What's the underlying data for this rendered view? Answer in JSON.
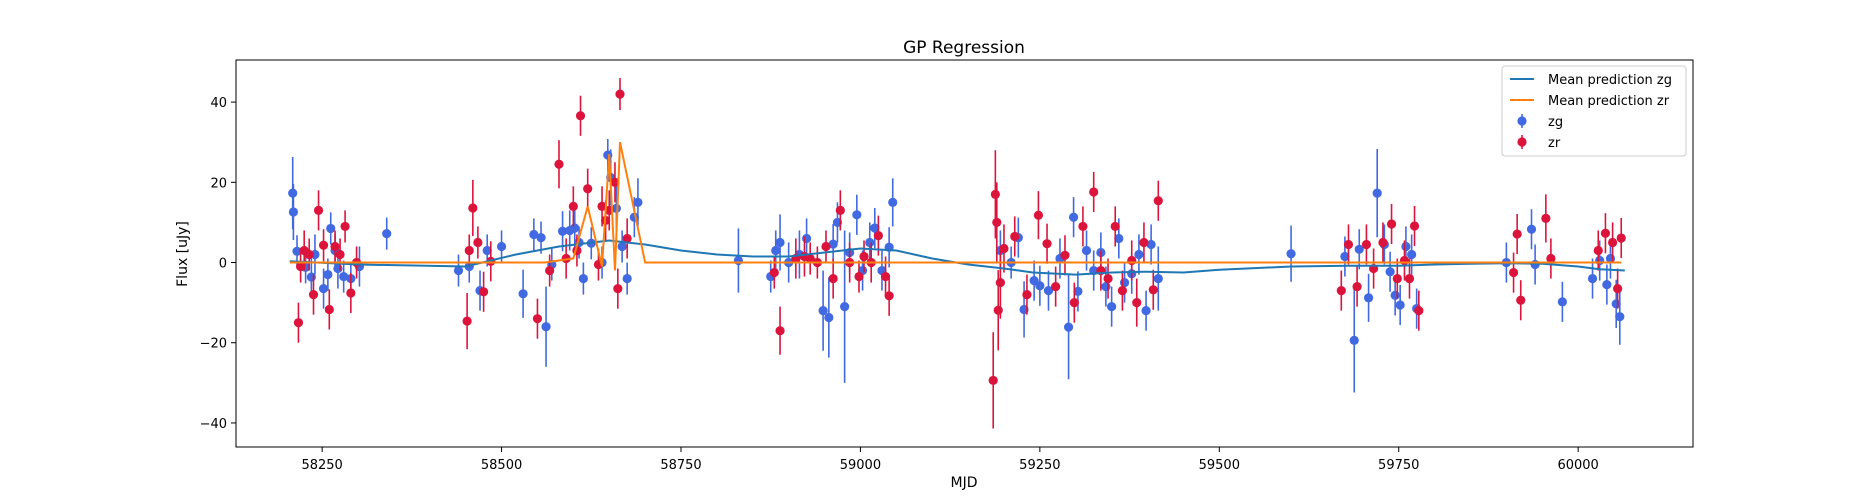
{
  "chart_data": {
    "type": "scatter",
    "title": "GP Regression",
    "xlabel": "MJD",
    "ylabel": "Flux [uJy]",
    "xlim": [
      58130,
      60160
    ],
    "ylim": [
      -46,
      50.5
    ],
    "xticks": [
      58250,
      58500,
      58750,
      59000,
      59250,
      59500,
      59750,
      60000
    ],
    "yticks": [
      -40,
      -20,
      0,
      20,
      40
    ],
    "grid": false,
    "legend_position": "top-right",
    "series": [
      {
        "name": "Mean prediction zg",
        "kind": "line",
        "color": "#1f77b4",
        "x": [
          58205,
          58300,
          58450,
          58520,
          58580,
          58650,
          58700,
          58750,
          58800,
          58850,
          58900,
          58950,
          59000,
          59050,
          59100,
          59150,
          59200,
          59240,
          59300,
          59350,
          59400,
          59450,
          59500,
          59600,
          59680,
          59750,
          59800,
          59850,
          59900,
          59950,
          60000,
          60030,
          60065
        ],
        "y": [
          0.3,
          -0.5,
          -1,
          2,
          4,
          5.5,
          4.5,
          3,
          2,
          1.5,
          1.5,
          2.5,
          3.5,
          3,
          1,
          -0.5,
          -1.5,
          -2.5,
          -3,
          -2.5,
          -2.3,
          -2.5,
          -1.8,
          -1,
          -0.8,
          -0.8,
          -0.5,
          -0.3,
          -0.2,
          -0.3,
          -1,
          -1.7,
          -2
        ]
      },
      {
        "name": "Mean prediction zr",
        "kind": "line",
        "color": "#ff7f0e",
        "x": [
          58205,
          58300,
          58450,
          58560,
          58600,
          58620,
          58640,
          58650,
          58658,
          58665,
          58700,
          59000,
          59200,
          59400,
          59600,
          59750,
          60060
        ],
        "y": [
          0,
          0,
          0,
          0,
          1,
          14,
          -1,
          27,
          -2,
          30,
          0,
          0,
          0,
          0,
          0,
          0,
          0
        ]
      },
      {
        "name": "zg",
        "kind": "errorbar",
        "color": "#4169e1",
        "points": [
          [
            58209,
            17.3,
            9
          ],
          [
            58210,
            12.6,
            7
          ],
          [
            58215,
            2.8,
            4
          ],
          [
            58227,
            -1.2,
            4
          ],
          [
            58235,
            -3.6,
            5
          ],
          [
            58240,
            2.0,
            5
          ],
          [
            58252,
            -6.5,
            5
          ],
          [
            58258,
            -3.0,
            4
          ],
          [
            58262,
            8.5,
            4
          ],
          [
            58268,
            3.0,
            4
          ],
          [
            58272,
            -1.5,
            5
          ],
          [
            58280,
            -3.5,
            4
          ],
          [
            58290,
            -4.0,
            4
          ],
          [
            58302,
            -1.0,
            5
          ],
          [
            58340,
            7.2,
            4
          ],
          [
            58440,
            -2.0,
            4
          ],
          [
            58455,
            -1.0,
            4
          ],
          [
            58470,
            -7.0,
            5
          ],
          [
            58480,
            3.0,
            4
          ],
          [
            58500,
            4.0,
            4
          ],
          [
            58530,
            -7.8,
            6
          ],
          [
            58545,
            7.0,
            4
          ],
          [
            58555,
            6.2,
            4
          ],
          [
            58562,
            -16.0,
            10
          ],
          [
            58570,
            -0.5,
            4
          ],
          [
            58585,
            7.8,
            5
          ],
          [
            58595,
            8.0,
            5
          ],
          [
            58602,
            8.6,
            5
          ],
          [
            58608,
            5.0,
            4
          ],
          [
            58614,
            -4.0,
            4
          ],
          [
            58625,
            4.8,
            4
          ],
          [
            58640,
            0.0,
            4
          ],
          [
            58648,
            26.8,
            4
          ],
          [
            58652,
            21.2,
            7
          ],
          [
            58660,
            13.5,
            6
          ],
          [
            58668,
            4.0,
            4
          ],
          [
            58675,
            -4.0,
            4
          ],
          [
            58685,
            11.3,
            5
          ],
          [
            58690,
            15.0,
            6
          ],
          [
            58830,
            0.5,
            8
          ],
          [
            58875,
            -3.5,
            4
          ],
          [
            58882,
            3.0,
            5
          ],
          [
            58888,
            5.0,
            7
          ],
          [
            58900,
            0.0,
            5
          ],
          [
            58915,
            2.0,
            6
          ],
          [
            58925,
            6.0,
            5
          ],
          [
            58948,
            -12.0,
            10
          ],
          [
            58956,
            -13.7,
            10
          ],
          [
            58962,
            4.6,
            5
          ],
          [
            58968,
            10.0,
            5
          ],
          [
            58978,
            -11.0,
            19
          ],
          [
            58985,
            2.5,
            5
          ],
          [
            58995,
            11.9,
            5
          ],
          [
            59003,
            -2.0,
            5
          ],
          [
            59013,
            5.0,
            5
          ],
          [
            59020,
            8.6,
            5
          ],
          [
            59030,
            -2.0,
            5
          ],
          [
            59040,
            3.8,
            5
          ],
          [
            59045,
            15.0,
            6
          ],
          [
            59195,
            3.0,
            5
          ],
          [
            59210,
            0.0,
            4
          ],
          [
            59220,
            6.2,
            5
          ],
          [
            59228,
            -11.7,
            7
          ],
          [
            59242,
            -4.5,
            5
          ],
          [
            59250,
            -5.8,
            5
          ],
          [
            59262,
            -7.0,
            5
          ],
          [
            59278,
            1.0,
            5
          ],
          [
            59290,
            -16.1,
            13
          ],
          [
            59297,
            11.3,
            5
          ],
          [
            59303,
            -7.2,
            5
          ],
          [
            59315,
            3.0,
            5
          ],
          [
            59325,
            -2.0,
            5
          ],
          [
            59335,
            2.5,
            5
          ],
          [
            59342,
            -6.0,
            5
          ],
          [
            59350,
            -11.0,
            5
          ],
          [
            59360,
            6.0,
            5
          ],
          [
            59368,
            -5.0,
            5
          ],
          [
            59378,
            -2.8,
            5
          ],
          [
            59388,
            2.0,
            5
          ],
          [
            59398,
            -12.0,
            5
          ],
          [
            59405,
            4.5,
            5
          ],
          [
            59415,
            -4.0,
            8
          ],
          [
            59600,
            2.2,
            7
          ],
          [
            59675,
            1.5,
            5
          ],
          [
            59688,
            -19.4,
            13
          ],
          [
            59695,
            3.3,
            5
          ],
          [
            59708,
            -8.8,
            6
          ],
          [
            59720,
            17.3,
            11
          ],
          [
            59730,
            4.5,
            5
          ],
          [
            59738,
            -2.3,
            5
          ],
          [
            59745,
            -8.2,
            5
          ],
          [
            59752,
            -10.6,
            5
          ],
          [
            59760,
            4.0,
            5
          ],
          [
            59768,
            2.0,
            5
          ],
          [
            59775,
            -11.5,
            5
          ],
          [
            59900,
            0.0,
            5
          ],
          [
            59935,
            8.3,
            5
          ],
          [
            59940,
            -0.5,
            5
          ],
          [
            59978,
            -9.8,
            5
          ],
          [
            60020,
            -4.0,
            5
          ],
          [
            60030,
            0.5,
            5
          ],
          [
            60040,
            -5.5,
            5
          ],
          [
            60045,
            1.0,
            5
          ],
          [
            60053,
            -10.3,
            6
          ],
          [
            60058,
            -13.5,
            7
          ]
        ]
      },
      {
        "name": "zr",
        "kind": "errorbar",
        "color": "#dc143c",
        "points": [
          [
            58217,
            -15.0,
            5
          ],
          [
            58220,
            -1.0,
            4
          ],
          [
            58225,
            3.0,
            5
          ],
          [
            58232,
            2.0,
            4
          ],
          [
            58238,
            -8.0,
            5
          ],
          [
            58245,
            13.0,
            5
          ],
          [
            58252,
            4.3,
            4
          ],
          [
            58260,
            -11.7,
            5
          ],
          [
            58268,
            4.0,
            4
          ],
          [
            58275,
            2.0,
            4
          ],
          [
            58282,
            9.0,
            4
          ],
          [
            58290,
            -7.6,
            5
          ],
          [
            58298,
            0.0,
            4
          ],
          [
            58452,
            -14.6,
            7
          ],
          [
            58455,
            3.0,
            4
          ],
          [
            58460,
            13.6,
            7
          ],
          [
            58467,
            5.0,
            4
          ],
          [
            58475,
            -7.3,
            5
          ],
          [
            58485,
            0.3,
            5
          ],
          [
            58550,
            -14.0,
            5
          ],
          [
            58567,
            -2.0,
            4
          ],
          [
            58580,
            24.5,
            6
          ],
          [
            58590,
            1.0,
            5
          ],
          [
            58600,
            14.0,
            5
          ],
          [
            58605,
            3.0,
            4
          ],
          [
            58610,
            36.6,
            5
          ],
          [
            58620,
            18.4,
            5
          ],
          [
            58635,
            -0.5,
            4
          ],
          [
            58640,
            14.0,
            5
          ],
          [
            58645,
            10.5,
            5
          ],
          [
            58650,
            13.0,
            5
          ],
          [
            58658,
            20.0,
            5
          ],
          [
            58662,
            -6.5,
            5
          ],
          [
            58665,
            42.0,
            4
          ],
          [
            58675,
            6.0,
            5
          ],
          [
            58880,
            -2.5,
            4
          ],
          [
            58888,
            -17.0,
            6
          ],
          [
            58910,
            1.0,
            5
          ],
          [
            58922,
            1.5,
            5
          ],
          [
            58930,
            1.0,
            4
          ],
          [
            58940,
            0.0,
            4
          ],
          [
            58952,
            4.0,
            4
          ],
          [
            58962,
            -4.0,
            5
          ],
          [
            58972,
            13.0,
            5
          ],
          [
            58985,
            0.0,
            5
          ],
          [
            58998,
            -3.5,
            4
          ],
          [
            59005,
            1.5,
            4
          ],
          [
            59015,
            0.0,
            5
          ],
          [
            59025,
            6.7,
            5
          ],
          [
            59035,
            -3.5,
            5
          ],
          [
            59040,
            -8.3,
            5
          ],
          [
            59185,
            -29.4,
            12
          ],
          [
            59188,
            17.0,
            11
          ],
          [
            59190,
            10.0,
            10
          ],
          [
            59192,
            -11.9,
            10
          ],
          [
            59195,
            -5.0,
            9
          ],
          [
            59200,
            3.5,
            6
          ],
          [
            59215,
            6.5,
            5
          ],
          [
            59232,
            -8.0,
            5
          ],
          [
            59248,
            11.8,
            6
          ],
          [
            59260,
            4.7,
            5
          ],
          [
            59272,
            -6.0,
            5
          ],
          [
            59285,
            1.8,
            5
          ],
          [
            59298,
            -10.0,
            5
          ],
          [
            59310,
            9.0,
            5
          ],
          [
            59325,
            17.6,
            5
          ],
          [
            59335,
            -2.0,
            5
          ],
          [
            59345,
            -4.0,
            5
          ],
          [
            59355,
            9.0,
            5
          ],
          [
            59365,
            -7.0,
            5
          ],
          [
            59378,
            0.5,
            5
          ],
          [
            59385,
            -10.0,
            6
          ],
          [
            59395,
            5.0,
            5
          ],
          [
            59408,
            -6.8,
            5
          ],
          [
            59415,
            15.4,
            5
          ],
          [
            59670,
            -7.0,
            5
          ],
          [
            59680,
            4.5,
            5
          ],
          [
            59692,
            -6.0,
            5
          ],
          [
            59705,
            4.5,
            5
          ],
          [
            59715,
            -1.5,
            5
          ],
          [
            59728,
            5.0,
            5
          ],
          [
            59740,
            9.6,
            5
          ],
          [
            59748,
            -4.0,
            5
          ],
          [
            59758,
            0.5,
            5
          ],
          [
            59765,
            -4.0,
            5
          ],
          [
            59772,
            9.1,
            5
          ],
          [
            59778,
            -12.0,
            5
          ],
          [
            59910,
            -2.5,
            5
          ],
          [
            59915,
            7.1,
            5
          ],
          [
            59920,
            -9.4,
            5
          ],
          [
            59955,
            11.0,
            6
          ],
          [
            59962,
            1.0,
            5
          ],
          [
            60028,
            3.0,
            5
          ],
          [
            60038,
            7.3,
            5
          ],
          [
            60048,
            5.0,
            5
          ],
          [
            60055,
            -6.5,
            5
          ],
          [
            60060,
            6.1,
            5
          ]
        ]
      }
    ]
  }
}
